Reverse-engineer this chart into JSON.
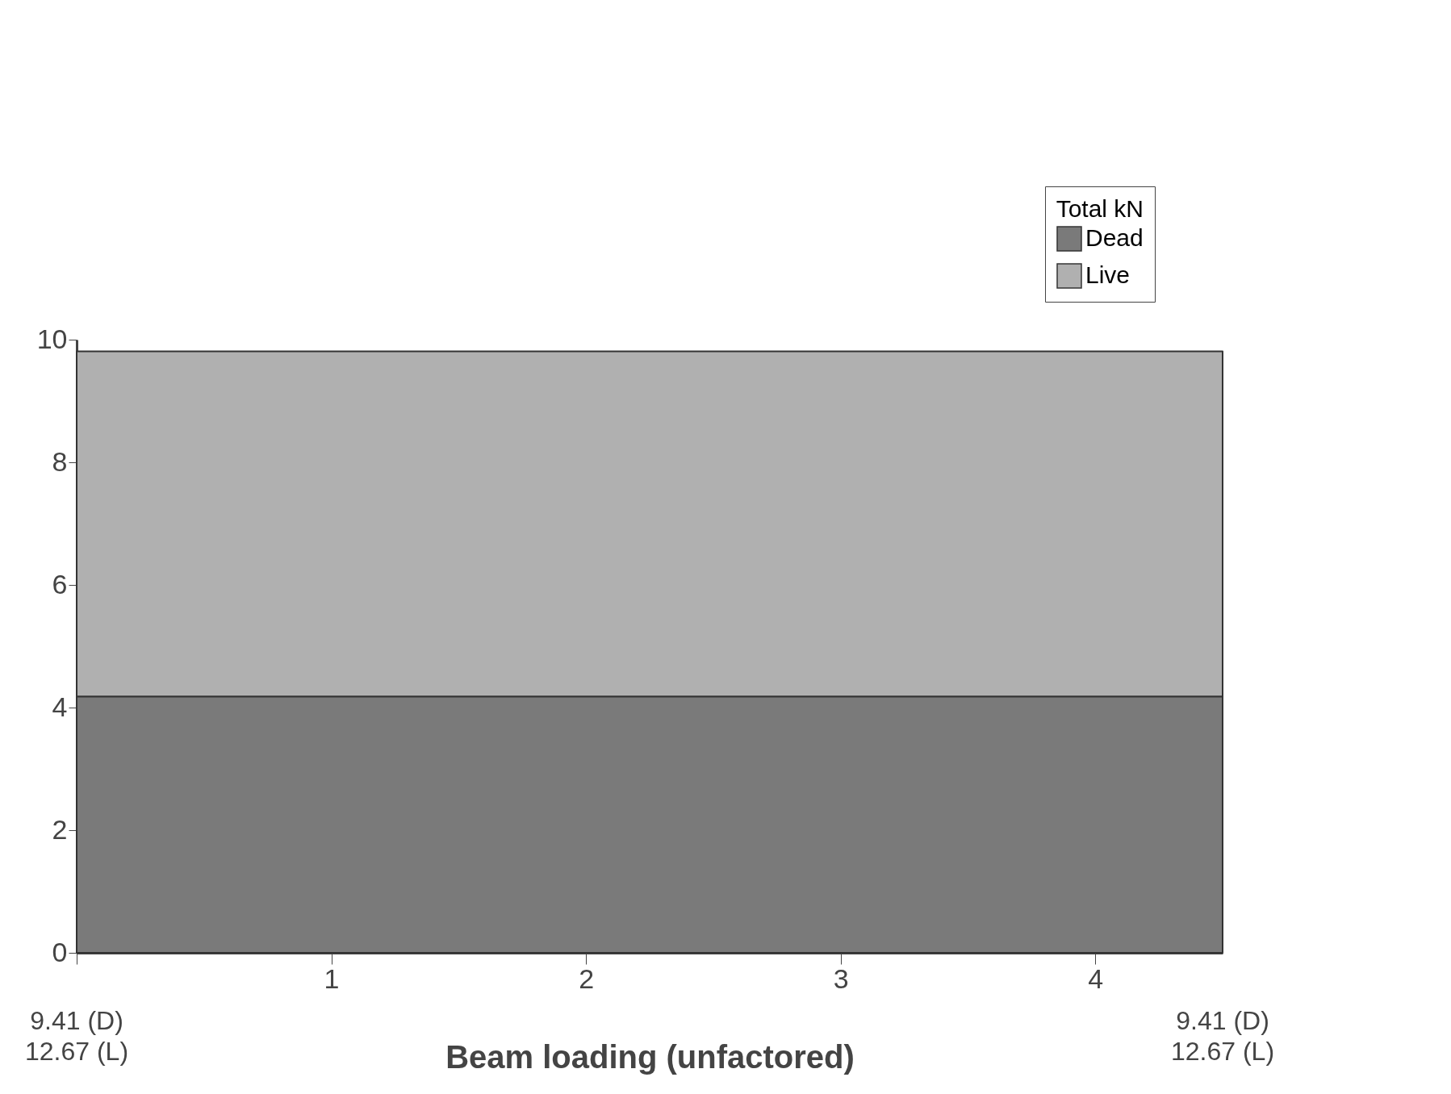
{
  "chart_data": {
    "type": "area",
    "xlabel": "Beam loading (unfactored)",
    "legend_title": "Total kN",
    "legend": "top right",
    "stacked": true,
    "grid": false,
    "x": [
      0,
      4.5
    ],
    "series": [
      {
        "name": "Dead",
        "color": "#7a7a7a",
        "values": [
          4.18,
          4.18
        ]
      },
      {
        "name": "Live",
        "color": "#b0b0b0",
        "values": [
          5.63,
          5.63
        ]
      }
    ],
    "xlim": [
      0,
      4.5
    ],
    "xticks": [
      {
        "value": 0,
        "label": null
      },
      1,
      2,
      3,
      4
    ],
    "ylim": [
      0,
      10
    ],
    "yticks": [
      0,
      2,
      4,
      6,
      8,
      10
    ],
    "annotations": [
      "9.41 (D)\n12.67 (L)",
      "9.41 (D)\n12.67 (L)"
    ]
  }
}
